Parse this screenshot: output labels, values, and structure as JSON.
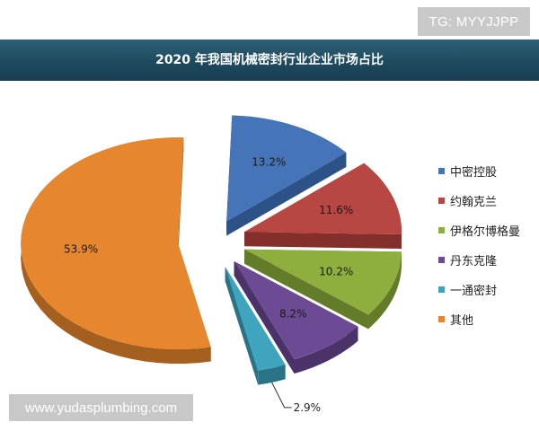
{
  "watermark_top": "TG: MYYJJPP",
  "watermark_bottom": "www.yudasplumbing.com",
  "chart_data": {
    "type": "pie",
    "title": "2020 年我国机械密封行业企业市场占比",
    "categories": [
      "中密控股",
      "约翰克兰",
      "伊格尔博格曼",
      "丹东克隆",
      "一通密封",
      "其他"
    ],
    "values": [
      13.2,
      11.6,
      10.2,
      8.2,
      2.9,
      53.9
    ],
    "value_labels": [
      "13.2%",
      "11.6%",
      "10.2%",
      "8.2%",
      "2.9%",
      "53.9%"
    ],
    "colors": [
      "#4674b9",
      "#b84642",
      "#8eaf3e",
      "#6d4b94",
      "#3fa4bd",
      "#e6862f"
    ],
    "side_colors": [
      "#2c5288",
      "#842f2c",
      "#637c29",
      "#4b3268",
      "#2a7386",
      "#a55f1f"
    ],
    "legend_position": "right",
    "exploded": true,
    "style": "3d"
  }
}
